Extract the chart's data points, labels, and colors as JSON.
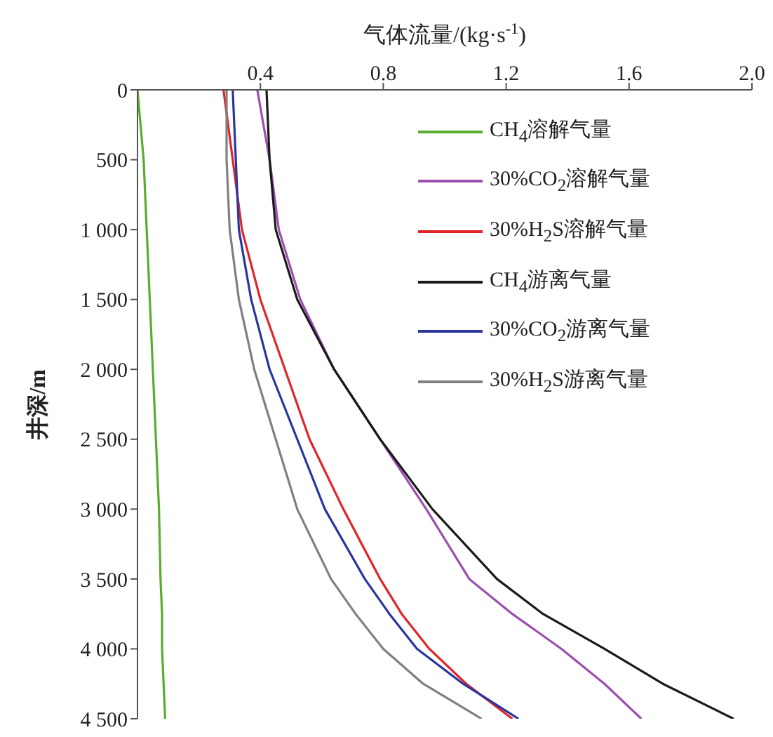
{
  "chart_data": {
    "type": "line",
    "xlabel": "气体流量/(kg·s$^{-1}$)",
    "ylabel": "井深/m",
    "xlim": [
      0,
      2.0
    ],
    "xticks": [
      0.4,
      0.8,
      1.2,
      1.6,
      {
        "value": 2.0,
        "label": "2.0"
      }
    ],
    "ylim": [
      4500,
      0
    ],
    "yticks": [
      0,
      500,
      {
        "value": 1000,
        "label": "1 000"
      },
      {
        "value": 1500,
        "label": "1 500"
      },
      {
        "value": 2000,
        "label": "2 000"
      },
      {
        "value": 2500,
        "label": "2 500"
      },
      {
        "value": 3000,
        "label": "3 000"
      },
      {
        "value": 3500,
        "label": "3 500"
      },
      {
        "value": 4000,
        "label": "4 000"
      },
      {
        "value": 4500,
        "label": "4 500"
      }
    ],
    "grid": false,
    "legend": "top right",
    "marker": "none",
    "line_style": "solid",
    "series": [
      {
        "name": "CH$_{4}$溶解气量",
        "color": "#5aac2e",
        "x": [
          0.0,
          0.02,
          0.03,
          0.04,
          0.05,
          0.06,
          0.07,
          0.075,
          0.08,
          0.08,
          0.085,
          0.09
        ],
        "values": [
          0,
          500,
          1000,
          1500,
          2000,
          2500,
          3000,
          3500,
          3750,
          4000,
          4250,
          4500
        ]
      },
      {
        "name": "30%CO$_{2}$溶解气量",
        "color": "#9b4fb0",
        "x": [
          0.39,
          0.43,
          0.46,
          0.53,
          0.64,
          0.79,
          0.94,
          1.08,
          1.22,
          1.38,
          1.52,
          1.64
        ],
        "values": [
          0,
          500,
          1000,
          1500,
          2000,
          2500,
          3000,
          3500,
          3750,
          4000,
          4250,
          4500
        ]
      },
      {
        "name": "30%H$_{2}$S溶解气量",
        "color": "#e0252a",
        "x": [
          0.28,
          0.31,
          0.34,
          0.4,
          0.48,
          0.56,
          0.67,
          0.79,
          0.86,
          0.95,
          1.07,
          1.22
        ],
        "values": [
          0,
          500,
          1000,
          1500,
          2000,
          2500,
          3000,
          3500,
          3750,
          4000,
          4250,
          4500
        ]
      },
      {
        "name": "CH$_{4}$游离气量",
        "color": "#1a1a1a",
        "x": [
          0.42,
          0.43,
          0.45,
          0.52,
          0.64,
          0.79,
          0.96,
          1.17,
          1.32,
          1.52,
          1.71,
          1.94
        ],
        "values": [
          0,
          500,
          1000,
          1500,
          2000,
          2500,
          3000,
          3500,
          3750,
          4000,
          4250,
          4500
        ]
      },
      {
        "name": "30%CO$_{2}$游离气量",
        "color": "#2a35a0",
        "x": [
          0.31,
          0.32,
          0.33,
          0.37,
          0.43,
          0.52,
          0.61,
          0.74,
          0.82,
          0.91,
          1.06,
          1.24
        ],
        "values": [
          0,
          500,
          1000,
          1500,
          2000,
          2500,
          3000,
          3500,
          3750,
          4000,
          4250,
          4500
        ]
      },
      {
        "name": "30%H$_{2}$S游离气量",
        "color": "#808080",
        "x": [
          0.29,
          0.29,
          0.3,
          0.33,
          0.38,
          0.45,
          0.52,
          0.63,
          0.71,
          0.8,
          0.93,
          1.12
        ],
        "values": [
          0,
          500,
          1000,
          1500,
          2000,
          2500,
          3000,
          3500,
          3750,
          4000,
          4250,
          4500
        ]
      }
    ]
  }
}
